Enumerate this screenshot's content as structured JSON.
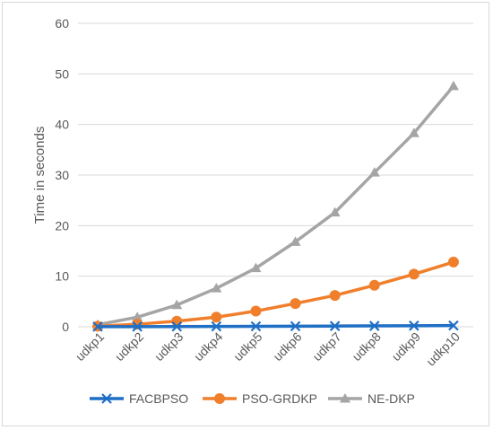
{
  "chart_data": {
    "type": "line",
    "title": "",
    "xlabel": "",
    "ylabel": "Time in seconds",
    "ylim": [
      0,
      60
    ],
    "yticks": [
      0,
      10,
      20,
      30,
      40,
      50,
      60
    ],
    "grid": true,
    "legend_position": "bottom",
    "categories": [
      "udkp1",
      "udkp2",
      "udkp3",
      "udkp4",
      "udkp5",
      "udkp6",
      "udkp7",
      "udkp8",
      "udkp9",
      "udkp10"
    ],
    "series": [
      {
        "name": "FACBPSO",
        "color": "#1f6fc5",
        "marker": "x",
        "values": [
          0.02,
          0.03,
          0.05,
          0.07,
          0.09,
          0.11,
          0.14,
          0.17,
          0.21,
          0.25
        ]
      },
      {
        "name": "PSO-GRDKP",
        "color": "#f07f2c",
        "marker": "circle",
        "values": [
          0.1,
          0.5,
          1.1,
          1.9,
          3.1,
          4.6,
          6.2,
          8.2,
          10.4,
          12.8
        ]
      },
      {
        "name": "NE-DKP",
        "color": "#a5a5a5",
        "marker": "triangle",
        "values": [
          0.4,
          1.9,
          4.3,
          7.6,
          11.6,
          16.8,
          22.6,
          30.5,
          38.3,
          47.6
        ]
      }
    ]
  }
}
